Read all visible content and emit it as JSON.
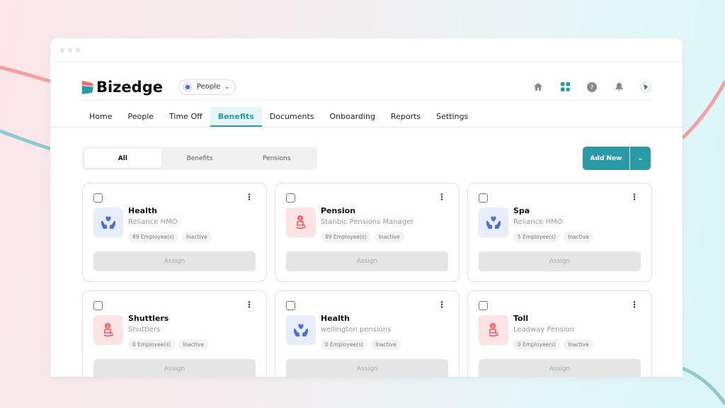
{
  "app": {
    "logo_text": "Bizedge",
    "module_selector": "People"
  },
  "header_icons": [
    "home-icon",
    "apps-grid-icon",
    "help-icon",
    "bell-icon",
    "avatar"
  ],
  "nav": {
    "tabs": [
      "Home",
      "People",
      "Time Off",
      "Benefits",
      "Documents",
      "Onboarding",
      "Reports",
      "Settings"
    ],
    "active": "Benefits"
  },
  "filter": {
    "segments": [
      "All",
      "Benefits",
      "Pensions"
    ],
    "active": "All"
  },
  "actions": {
    "add_new": "Add New"
  },
  "colors": {
    "accent": "#2a9aa6",
    "health_icon": "#4b6ee0",
    "pension_icon": "#f25a5a"
  },
  "cards": [
    {
      "title": "Health",
      "provider": "Reliance HMO",
      "employees": "89 Employee(s)",
      "status": "Inactive",
      "icon": "health",
      "assign": "Assign"
    },
    {
      "title": "Pension",
      "provider": "Stanbic Pensions Manager",
      "employees": "89 Employee(s)",
      "status": "Inactive",
      "icon": "pension",
      "assign": "Assign"
    },
    {
      "title": "Spa",
      "provider": "Reliance HMO",
      "employees": "5 Employee(s)",
      "status": "Inactive",
      "icon": "health",
      "assign": "Assign"
    },
    {
      "title": "Shuttlers",
      "provider": "Shuttlers",
      "employees": "0 Employee(s)",
      "status": "Inactive",
      "icon": "pension",
      "assign": "Assign"
    },
    {
      "title": "Health",
      "provider": "wellington pensions",
      "employees": "0 Employee(s)",
      "status": "Inactive",
      "icon": "health",
      "assign": "Assign"
    },
    {
      "title": "Toll",
      "provider": "Leadway Pension",
      "employees": "0 Employee(s)",
      "status": "Inactive",
      "icon": "pension",
      "assign": "Assign"
    }
  ]
}
